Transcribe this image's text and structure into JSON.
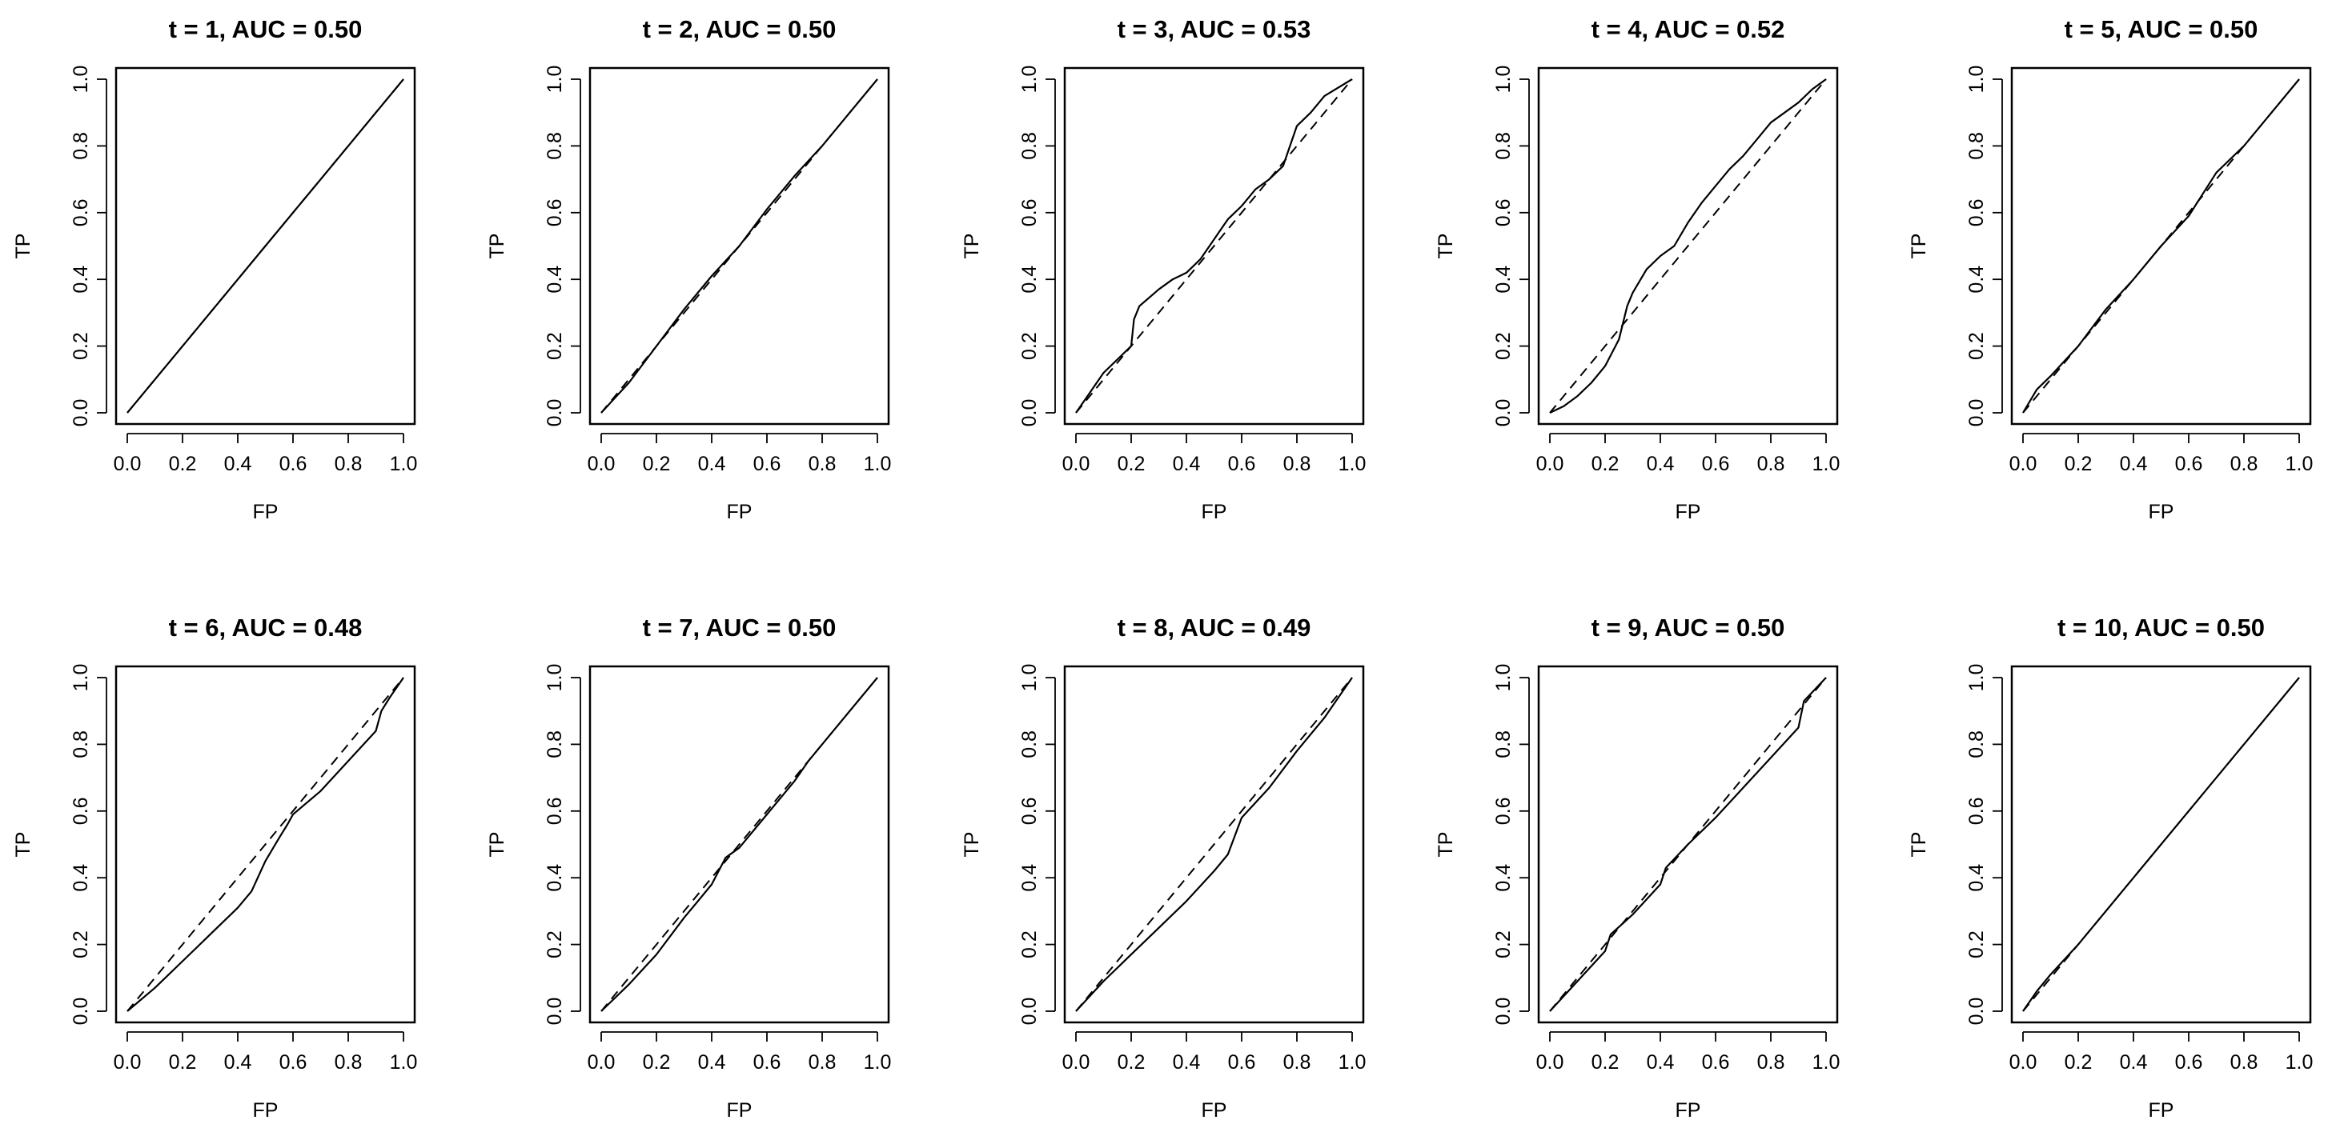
{
  "chart_data": [
    {
      "type": "line",
      "title": "t = 1, AUC = 0.50",
      "xlabel": "FP",
      "ylabel": "TP",
      "xlim": [
        0,
        1
      ],
      "ylim": [
        0,
        1
      ],
      "x_ticks": [
        "0.0",
        "0.2",
        "0.4",
        "0.6",
        "0.8",
        "1.0"
      ],
      "y_ticks": [
        "0.0",
        "0.2",
        "0.4",
        "0.6",
        "0.8",
        "1.0"
      ],
      "grid": false,
      "series": [
        {
          "line_style": "solid",
          "points": [
            [
              0,
              0
            ],
            [
              0.25,
              0.25
            ],
            [
              0.5,
              0.5
            ],
            [
              0.75,
              0.75
            ],
            [
              1,
              1
            ]
          ]
        },
        {
          "line_style": "dashed",
          "points": [
            [
              0,
              0
            ],
            [
              1,
              1
            ]
          ]
        }
      ]
    },
    {
      "type": "line",
      "title": "t = 2, AUC = 0.50",
      "xlabel": "FP",
      "ylabel": "TP",
      "xlim": [
        0,
        1
      ],
      "ylim": [
        0,
        1
      ],
      "x_ticks": [
        "0.0",
        "0.2",
        "0.4",
        "0.6",
        "0.8",
        "1.0"
      ],
      "y_ticks": [
        "0.0",
        "0.2",
        "0.4",
        "0.6",
        "0.8",
        "1.0"
      ],
      "grid": false,
      "series": [
        {
          "line_style": "solid",
          "points": [
            [
              0,
              0
            ],
            [
              0.1,
              0.09
            ],
            [
              0.2,
              0.2
            ],
            [
              0.3,
              0.31
            ],
            [
              0.4,
              0.41
            ],
            [
              0.5,
              0.5
            ],
            [
              0.6,
              0.61
            ],
            [
              0.7,
              0.71
            ],
            [
              0.8,
              0.8
            ],
            [
              0.9,
              0.9
            ],
            [
              1,
              1
            ]
          ]
        },
        {
          "line_style": "dashed",
          "points": [
            [
              0,
              0
            ],
            [
              1,
              1
            ]
          ]
        }
      ]
    },
    {
      "type": "line",
      "title": "t = 3, AUC = 0.53",
      "xlabel": "FP",
      "ylabel": "TP",
      "xlim": [
        0,
        1
      ],
      "ylim": [
        0,
        1
      ],
      "x_ticks": [
        "0.0",
        "0.2",
        "0.4",
        "0.6",
        "0.8",
        "1.0"
      ],
      "y_ticks": [
        "0.0",
        "0.2",
        "0.4",
        "0.6",
        "0.8",
        "1.0"
      ],
      "grid": false,
      "series": [
        {
          "line_style": "solid",
          "points": [
            [
              0,
              0
            ],
            [
              0.05,
              0.06
            ],
            [
              0.1,
              0.12
            ],
            [
              0.15,
              0.16
            ],
            [
              0.2,
              0.2
            ],
            [
              0.21,
              0.28
            ],
            [
              0.23,
              0.32
            ],
            [
              0.3,
              0.37
            ],
            [
              0.35,
              0.4
            ],
            [
              0.4,
              0.42
            ],
            [
              0.45,
              0.46
            ],
            [
              0.5,
              0.52
            ],
            [
              0.55,
              0.58
            ],
            [
              0.6,
              0.62
            ],
            [
              0.65,
              0.67
            ],
            [
              0.7,
              0.7
            ],
            [
              0.75,
              0.74
            ],
            [
              0.8,
              0.86
            ],
            [
              0.85,
              0.9
            ],
            [
              0.9,
              0.95
            ],
            [
              1,
              1
            ]
          ]
        },
        {
          "line_style": "dashed",
          "points": [
            [
              0,
              0
            ],
            [
              1,
              1
            ]
          ]
        }
      ]
    },
    {
      "type": "line",
      "title": "t = 4, AUC = 0.52",
      "xlabel": "FP",
      "ylabel": "TP",
      "xlim": [
        0,
        1
      ],
      "ylim": [
        0,
        1
      ],
      "x_ticks": [
        "0.0",
        "0.2",
        "0.4",
        "0.6",
        "0.8",
        "1.0"
      ],
      "y_ticks": [
        "0.0",
        "0.2",
        "0.4",
        "0.6",
        "0.8",
        "1.0"
      ],
      "grid": false,
      "series": [
        {
          "line_style": "solid",
          "points": [
            [
              0,
              0
            ],
            [
              0.05,
              0.02
            ],
            [
              0.1,
              0.05
            ],
            [
              0.15,
              0.09
            ],
            [
              0.2,
              0.14
            ],
            [
              0.25,
              0.22
            ],
            [
              0.28,
              0.32
            ],
            [
              0.3,
              0.36
            ],
            [
              0.35,
              0.43
            ],
            [
              0.4,
              0.47
            ],
            [
              0.45,
              0.5
            ],
            [
              0.5,
              0.57
            ],
            [
              0.55,
              0.63
            ],
            [
              0.6,
              0.68
            ],
            [
              0.65,
              0.73
            ],
            [
              0.7,
              0.77
            ],
            [
              0.75,
              0.82
            ],
            [
              0.8,
              0.87
            ],
            [
              0.85,
              0.9
            ],
            [
              0.9,
              0.93
            ],
            [
              0.95,
              0.97
            ],
            [
              1,
              1
            ]
          ]
        },
        {
          "line_style": "dashed",
          "points": [
            [
              0,
              0
            ],
            [
              1,
              1
            ]
          ]
        }
      ]
    },
    {
      "type": "line",
      "title": "t = 5, AUC = 0.50",
      "xlabel": "FP",
      "ylabel": "TP",
      "xlim": [
        0,
        1
      ],
      "ylim": [
        0,
        1
      ],
      "x_ticks": [
        "0.0",
        "0.2",
        "0.4",
        "0.6",
        "0.8",
        "1.0"
      ],
      "y_ticks": [
        "0.0",
        "0.2",
        "0.4",
        "0.6",
        "0.8",
        "1.0"
      ],
      "grid": false,
      "series": [
        {
          "line_style": "solid",
          "points": [
            [
              0,
              0
            ],
            [
              0.05,
              0.07
            ],
            [
              0.1,
              0.11
            ],
            [
              0.2,
              0.2
            ],
            [
              0.3,
              0.31
            ],
            [
              0.4,
              0.4
            ],
            [
              0.5,
              0.5
            ],
            [
              0.6,
              0.59
            ],
            [
              0.7,
              0.72
            ],
            [
              0.8,
              0.8
            ],
            [
              0.9,
              0.9
            ],
            [
              1,
              1
            ]
          ]
        },
        {
          "line_style": "dashed",
          "points": [
            [
              0,
              0
            ],
            [
              1,
              1
            ]
          ]
        }
      ]
    },
    {
      "type": "line",
      "title": "t = 6, AUC = 0.48",
      "xlabel": "FP",
      "ylabel": "TP",
      "xlim": [
        0,
        1
      ],
      "ylim": [
        0,
        1
      ],
      "x_ticks": [
        "0.0",
        "0.2",
        "0.4",
        "0.6",
        "0.8",
        "1.0"
      ],
      "y_ticks": [
        "0.0",
        "0.2",
        "0.4",
        "0.6",
        "0.8",
        "1.0"
      ],
      "grid": false,
      "series": [
        {
          "line_style": "solid",
          "points": [
            [
              0,
              0
            ],
            [
              0.1,
              0.07
            ],
            [
              0.2,
              0.15
            ],
            [
              0.3,
              0.23
            ],
            [
              0.4,
              0.31
            ],
            [
              0.45,
              0.36
            ],
            [
              0.5,
              0.45
            ],
            [
              0.55,
              0.52
            ],
            [
              0.58,
              0.56
            ],
            [
              0.6,
              0.59
            ],
            [
              0.7,
              0.66
            ],
            [
              0.8,
              0.75
            ],
            [
              0.9,
              0.84
            ],
            [
              0.92,
              0.9
            ],
            [
              0.95,
              0.94
            ],
            [
              1,
              1
            ]
          ]
        },
        {
          "line_style": "dashed",
          "points": [
            [
              0,
              0
            ],
            [
              1,
              1
            ]
          ]
        }
      ]
    },
    {
      "type": "line",
      "title": "t = 7, AUC = 0.50",
      "xlabel": "FP",
      "ylabel": "TP",
      "xlim": [
        0,
        1
      ],
      "ylim": [
        0,
        1
      ],
      "x_ticks": [
        "0.0",
        "0.2",
        "0.4",
        "0.6",
        "0.8",
        "1.0"
      ],
      "y_ticks": [
        "0.0",
        "0.2",
        "0.4",
        "0.6",
        "0.8",
        "1.0"
      ],
      "grid": false,
      "series": [
        {
          "line_style": "solid",
          "points": [
            [
              0,
              0
            ],
            [
              0.1,
              0.08
            ],
            [
              0.2,
              0.17
            ],
            [
              0.3,
              0.28
            ],
            [
              0.35,
              0.33
            ],
            [
              0.4,
              0.38
            ],
            [
              0.45,
              0.46
            ],
            [
              0.5,
              0.49
            ],
            [
              0.6,
              0.59
            ],
            [
              0.7,
              0.69
            ],
            [
              0.75,
              0.75
            ],
            [
              0.8,
              0.8
            ],
            [
              0.9,
              0.9
            ],
            [
              1,
              1
            ]
          ]
        },
        {
          "line_style": "dashed",
          "points": [
            [
              0,
              0
            ],
            [
              1,
              1
            ]
          ]
        }
      ]
    },
    {
      "type": "line",
      "title": "t = 8, AUC = 0.49",
      "xlabel": "FP",
      "ylabel": "TP",
      "xlim": [
        0,
        1
      ],
      "ylim": [
        0,
        1
      ],
      "x_ticks": [
        "0.0",
        "0.2",
        "0.4",
        "0.6",
        "0.8",
        "1.0"
      ],
      "y_ticks": [
        "0.0",
        "0.2",
        "0.4",
        "0.6",
        "0.8",
        "1.0"
      ],
      "grid": false,
      "series": [
        {
          "line_style": "solid",
          "points": [
            [
              0,
              0
            ],
            [
              0.1,
              0.09
            ],
            [
              0.2,
              0.17
            ],
            [
              0.3,
              0.25
            ],
            [
              0.4,
              0.33
            ],
            [
              0.5,
              0.42
            ],
            [
              0.55,
              0.47
            ],
            [
              0.6,
              0.58
            ],
            [
              0.7,
              0.67
            ],
            [
              0.8,
              0.78
            ],
            [
              0.9,
              0.88
            ],
            [
              1,
              1
            ]
          ]
        },
        {
          "line_style": "dashed",
          "points": [
            [
              0,
              0
            ],
            [
              1,
              1
            ]
          ]
        }
      ]
    },
    {
      "type": "line",
      "title": "t = 9, AUC = 0.50",
      "xlabel": "FP",
      "ylabel": "TP",
      "xlim": [
        0,
        1
      ],
      "ylim": [
        0,
        1
      ],
      "x_ticks": [
        "0.0",
        "0.2",
        "0.4",
        "0.6",
        "0.8",
        "1.0"
      ],
      "y_ticks": [
        "0.0",
        "0.2",
        "0.4",
        "0.6",
        "0.8",
        "1.0"
      ],
      "grid": false,
      "series": [
        {
          "line_style": "solid",
          "points": [
            [
              0,
              0
            ],
            [
              0.1,
              0.09
            ],
            [
              0.2,
              0.18
            ],
            [
              0.22,
              0.23
            ],
            [
              0.3,
              0.29
            ],
            [
              0.4,
              0.38
            ],
            [
              0.42,
              0.43
            ],
            [
              0.5,
              0.5
            ],
            [
              0.6,
              0.58
            ],
            [
              0.7,
              0.67
            ],
            [
              0.8,
              0.76
            ],
            [
              0.9,
              0.85
            ],
            [
              0.92,
              0.93
            ],
            [
              1,
              1
            ]
          ]
        },
        {
          "line_style": "dashed",
          "points": [
            [
              0,
              0
            ],
            [
              1,
              1
            ]
          ]
        }
      ]
    },
    {
      "type": "line",
      "title": "t = 10, AUC = 0.50",
      "xlabel": "FP",
      "ylabel": "TP",
      "xlim": [
        0,
        1
      ],
      "ylim": [
        0,
        1
      ],
      "x_ticks": [
        "0.0",
        "0.2",
        "0.4",
        "0.6",
        "0.8",
        "1.0"
      ],
      "y_ticks": [
        "0.0",
        "0.2",
        "0.4",
        "0.6",
        "0.8",
        "1.0"
      ],
      "grid": false,
      "series": [
        {
          "line_style": "solid",
          "points": [
            [
              0,
              0
            ],
            [
              0.05,
              0.06
            ],
            [
              0.1,
              0.11
            ],
            [
              0.2,
              0.2
            ],
            [
              0.4,
              0.4
            ],
            [
              0.6,
              0.6
            ],
            [
              0.8,
              0.8
            ],
            [
              1,
              1
            ]
          ]
        },
        {
          "line_style": "dashed",
          "points": [
            [
              0,
              0
            ],
            [
              1,
              1
            ]
          ]
        }
      ]
    }
  ]
}
